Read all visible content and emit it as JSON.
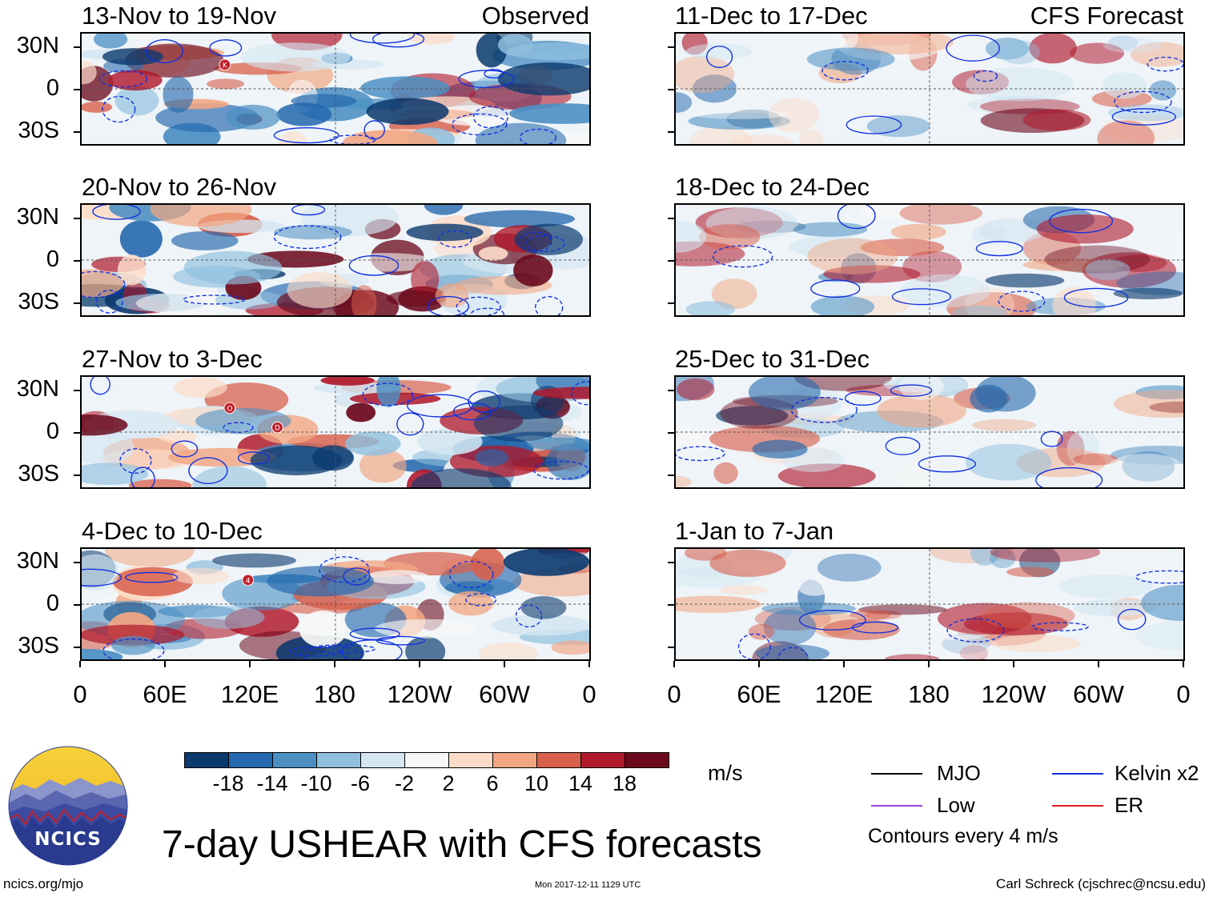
{
  "chart_data": {
    "type": "heatmap",
    "title": "7-day USHEAR with CFS forecasts",
    "variable": "USHEAR",
    "units": "m/s",
    "y_ticks": [
      "30N",
      "0",
      "30S"
    ],
    "x_ticks": [
      "0",
      "60E",
      "120E",
      "180",
      "120W",
      "60W",
      "0"
    ],
    "x_range_deg": [
      0,
      360
    ],
    "y_range_deg": [
      -40,
      40
    ],
    "colorbar_ticks": [
      "-18",
      "-14",
      "-10",
      "-6",
      "-2",
      "2",
      "6",
      "10",
      "14",
      "18"
    ],
    "colorbar_colors": [
      "#0b3a6e",
      "#2468ad",
      "#4c8fc3",
      "#90c0de",
      "#d3e6f2",
      "#f7f7f7",
      "#fcdcc8",
      "#f2a682",
      "#d85f4b",
      "#b0192c",
      "#6c0a1d"
    ],
    "panels": [
      {
        "period": "13-Nov to 19-Nov",
        "label": "Observed",
        "kind": "observed",
        "storms": [
          "K"
        ]
      },
      {
        "period": "20-Nov to 26-Nov",
        "label": "",
        "kind": "observed",
        "storms": []
      },
      {
        "period": "27-Nov to 3-Dec",
        "label": "",
        "kind": "observed",
        "storms": [
          "O",
          "D"
        ]
      },
      {
        "period": "4-Dec to 10-Dec",
        "label": "",
        "kind": "observed",
        "storms": [
          "4"
        ]
      },
      {
        "period": "11-Dec to 17-Dec",
        "label": "CFS Forecast",
        "kind": "forecast",
        "storms": []
      },
      {
        "period": "18-Dec to 24-Dec",
        "label": "",
        "kind": "forecast",
        "storms": []
      },
      {
        "period": "25-Dec to 31-Dec",
        "label": "",
        "kind": "forecast",
        "storms": []
      },
      {
        "period": "1-Jan to 7-Jan",
        "label": "",
        "kind": "forecast",
        "storms": []
      }
    ],
    "legend": [
      {
        "name": "MJO",
        "color": "#000000"
      },
      {
        "name": "Kelvin x2",
        "color": "#1030e0"
      },
      {
        "name": "Low",
        "color": "#a040e0"
      },
      {
        "name": "ER",
        "color": "#e02020"
      }
    ],
    "contour_note": "Contours every 4 m/s"
  },
  "footer": {
    "logo_text": "NCICS",
    "site": "ncics.org/mjo",
    "timestamp": "Mon 2017-12-11 1129 UTC",
    "credit": "Carl Schreck (cjschrec@ncsu.edu)"
  }
}
